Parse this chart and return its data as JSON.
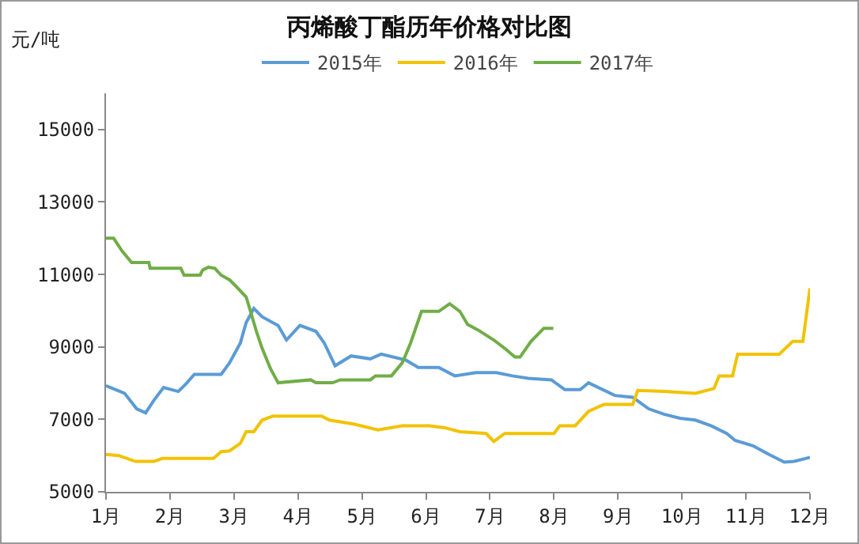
{
  "chart_data": {
    "type": "line",
    "title": "丙烯酸丁酯历年价格对比图",
    "ylabel": "元/吨",
    "xlim": [
      1,
      12
    ],
    "xticks": [
      {
        "value": 1,
        "label": "1月"
      },
      {
        "value": 2,
        "label": "2月"
      },
      {
        "value": 3,
        "label": "3月"
      },
      {
        "value": 4,
        "label": "4月"
      },
      {
        "value": 5,
        "label": "5月"
      },
      {
        "value": 6,
        "label": "6月"
      },
      {
        "value": 7,
        "label": "7月"
      },
      {
        "value": 8,
        "label": "8月"
      },
      {
        "value": 9,
        "label": "9月"
      },
      {
        "value": 10,
        "label": "10月"
      },
      {
        "value": 11,
        "label": "11月"
      },
      {
        "value": 12,
        "label": "12月"
      }
    ],
    "ylim": [
      5000,
      16000
    ],
    "yticks": [
      5000,
      7000,
      9000,
      11000,
      13000,
      15000
    ],
    "grid": false,
    "legend": "top",
    "marker": "none",
    "line_style": "solid",
    "series": [
      {
        "name": "2015年",
        "color": "#5b9bd5",
        "x": [
          1,
          1.29,
          1.48,
          1.62,
          1.75,
          1.9,
          2.13,
          2.26,
          2.38,
          2.8,
          2.93,
          3.1,
          3.19,
          3.31,
          3.44,
          3.69,
          3.82,
          4.03,
          4.28,
          4.41,
          4.58,
          4.83,
          5.13,
          5.3,
          5.68,
          5.88,
          6.2,
          6.45,
          6.78,
          7.1,
          7.35,
          7.6,
          7.96,
          8.17,
          8.41,
          8.54,
          8.95,
          9.23,
          9.48,
          9.72,
          9.97,
          10.21,
          10.46,
          10.7,
          10.83,
          11.11,
          11.36,
          11.6,
          11.75,
          12
        ],
        "values": [
          7930,
          7720,
          7290,
          7180,
          7530,
          7880,
          7770,
          8000,
          8240,
          8240,
          8560,
          9110,
          9670,
          10060,
          9830,
          9590,
          9190,
          9590,
          9430,
          9110,
          8480,
          8750,
          8670,
          8800,
          8640,
          8430,
          8430,
          8200,
          8290,
          8290,
          8200,
          8130,
          8090,
          7820,
          7820,
          8010,
          7660,
          7610,
          7290,
          7140,
          7030,
          6980,
          6820,
          6610,
          6420,
          6270,
          6030,
          5820,
          5840,
          5950
        ]
      },
      {
        "name": "2016年",
        "color": "#f2c200",
        "x": [
          1,
          1.2,
          1.46,
          1.75,
          1.88,
          2.68,
          2.8,
          2.93,
          3.1,
          3.19,
          3.31,
          3.44,
          3.61,
          4.37,
          4.49,
          4.87,
          5.25,
          5.63,
          6.05,
          6.29,
          6.53,
          6.94,
          7.06,
          7.23,
          8.0,
          8.09,
          8.33,
          8.54,
          8.78,
          9.23,
          9.31,
          9.72,
          10.21,
          10.5,
          10.58,
          10.79,
          10.87,
          11.52,
          11.73,
          11.89,
          12
        ],
        "values": [
          6030,
          6000,
          5840,
          5840,
          5920,
          5920,
          6110,
          6130,
          6340,
          6660,
          6660,
          6980,
          7090,
          7090,
          6980,
          6870,
          6710,
          6820,
          6820,
          6770,
          6660,
          6610,
          6390,
          6610,
          6610,
          6820,
          6820,
          7220,
          7410,
          7410,
          7800,
          7770,
          7720,
          7850,
          8200,
          8200,
          8800,
          8800,
          9150,
          9150,
          10620
        ]
      },
      {
        "name": "2017年",
        "color": "#70ad47",
        "x": [
          1,
          1.12,
          1.25,
          1.4,
          1.67,
          1.69,
          2.17,
          2.22,
          2.47,
          2.51,
          2.6,
          2.7,
          2.8,
          2.93,
          3.06,
          3.19,
          3.27,
          3.35,
          3.44,
          3.57,
          3.69,
          4.2,
          4.28,
          4.54,
          4.66,
          5.13,
          5.21,
          5.46,
          5.63,
          5.76,
          5.93,
          6.2,
          6.37,
          6.53,
          6.65,
          6.82,
          7.06,
          7.23,
          7.39,
          7.47,
          7.64,
          7.84,
          7.99
        ],
        "values": [
          12000,
          12000,
          11650,
          11330,
          11330,
          11170,
          11170,
          10980,
          10980,
          11120,
          11200,
          11170,
          10980,
          10850,
          10620,
          10380,
          9910,
          9430,
          8960,
          8400,
          8010,
          8090,
          8010,
          8010,
          8090,
          8090,
          8200,
          8200,
          8560,
          9110,
          9980,
          9980,
          10190,
          9980,
          9620,
          9460,
          9190,
          8960,
          8720,
          8720,
          9150,
          9510,
          9510
        ]
      }
    ]
  }
}
